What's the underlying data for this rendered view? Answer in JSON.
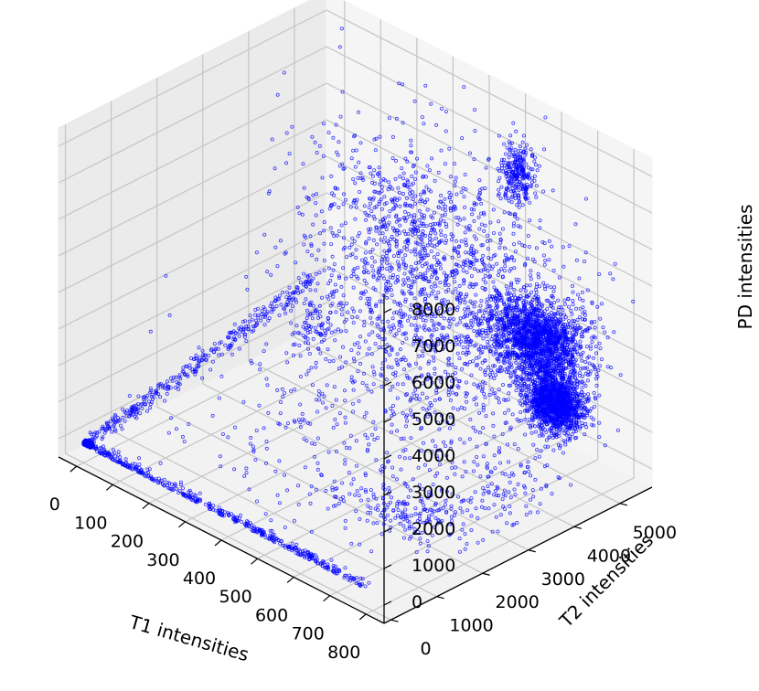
{
  "chart_data": {
    "type": "scatter",
    "projection": "3d",
    "title": "",
    "xlabel": "T1 intensities",
    "ylabel": "T2 intensities",
    "zlabel": "PD intensities",
    "xticks": [
      0,
      100,
      200,
      300,
      400,
      500,
      600,
      700,
      800
    ],
    "yticks": [
      0,
      1000,
      2000,
      3000,
      4000,
      5000
    ],
    "zticks": [
      0,
      1000,
      2000,
      3000,
      4000,
      5000,
      6000,
      7000,
      8000
    ],
    "xlim": [
      -50,
      850
    ],
    "ylim": [
      -150,
      5700
    ],
    "zlim": [
      -500,
      8500
    ],
    "grid": true,
    "marker_color": "#0000ff",
    "pane_color": "#f2f2f2",
    "clusters": [
      {
        "x": 10,
        "y": 30,
        "z": 30,
        "sx": 6,
        "sy": 25,
        "sz": 40,
        "n": 260
      },
      {
        "x": 50,
        "y": 4600,
        "z": 600,
        "sx": 22,
        "sy": 180,
        "sz": 300,
        "n": 70
      },
      {
        "x": 300,
        "y": 4500,
        "z": 5000,
        "sx": 70,
        "sy": 320,
        "sz": 550,
        "n": 150
      },
      {
        "x": 640,
        "y": 4900,
        "z": 2900,
        "sx": 60,
        "sy": 260,
        "sz": 480,
        "n": 1700
      },
      {
        "x": 710,
        "y": 4700,
        "z": 1700,
        "sx": 32,
        "sy": 160,
        "sz": 320,
        "n": 1300
      },
      {
        "x": 560,
        "y": 5050,
        "z": 7000,
        "sx": 18,
        "sy": 100,
        "sz": 450,
        "n": 260
      },
      {
        "x": 430,
        "y": 4400,
        "z": 3900,
        "sx": 170,
        "sy": 700,
        "sz": 1600,
        "n": 1300
      },
      {
        "x": 520,
        "y": 3600,
        "z": 2400,
        "sx": 200,
        "sy": 1100,
        "sz": 1900,
        "n": 500
      },
      {
        "x": 640,
        "y": 1900,
        "z": 80,
        "sx": 70,
        "sy": 350,
        "sz": 120,
        "n": 120
      },
      {
        "x": 710,
        "y": 3000,
        "z": 80,
        "sx": 55,
        "sy": 650,
        "sz": 120,
        "n": 110
      },
      {
        "x": 400,
        "y": 2400,
        "z": 300,
        "sx": 180,
        "sy": 1300,
        "sz": 450,
        "n": 200
      }
    ],
    "bands": [
      {
        "from": [
          20,
          0,
          20
        ],
        "to": [
          760,
          0,
          60
        ],
        "spread": [
          12,
          60,
          60
        ],
        "n": 420
      },
      {
        "from": [
          0,
          20,
          20
        ],
        "to": [
          0,
          5100,
          1400
        ],
        "spread": [
          10,
          80,
          120
        ],
        "n": 340
      }
    ]
  }
}
